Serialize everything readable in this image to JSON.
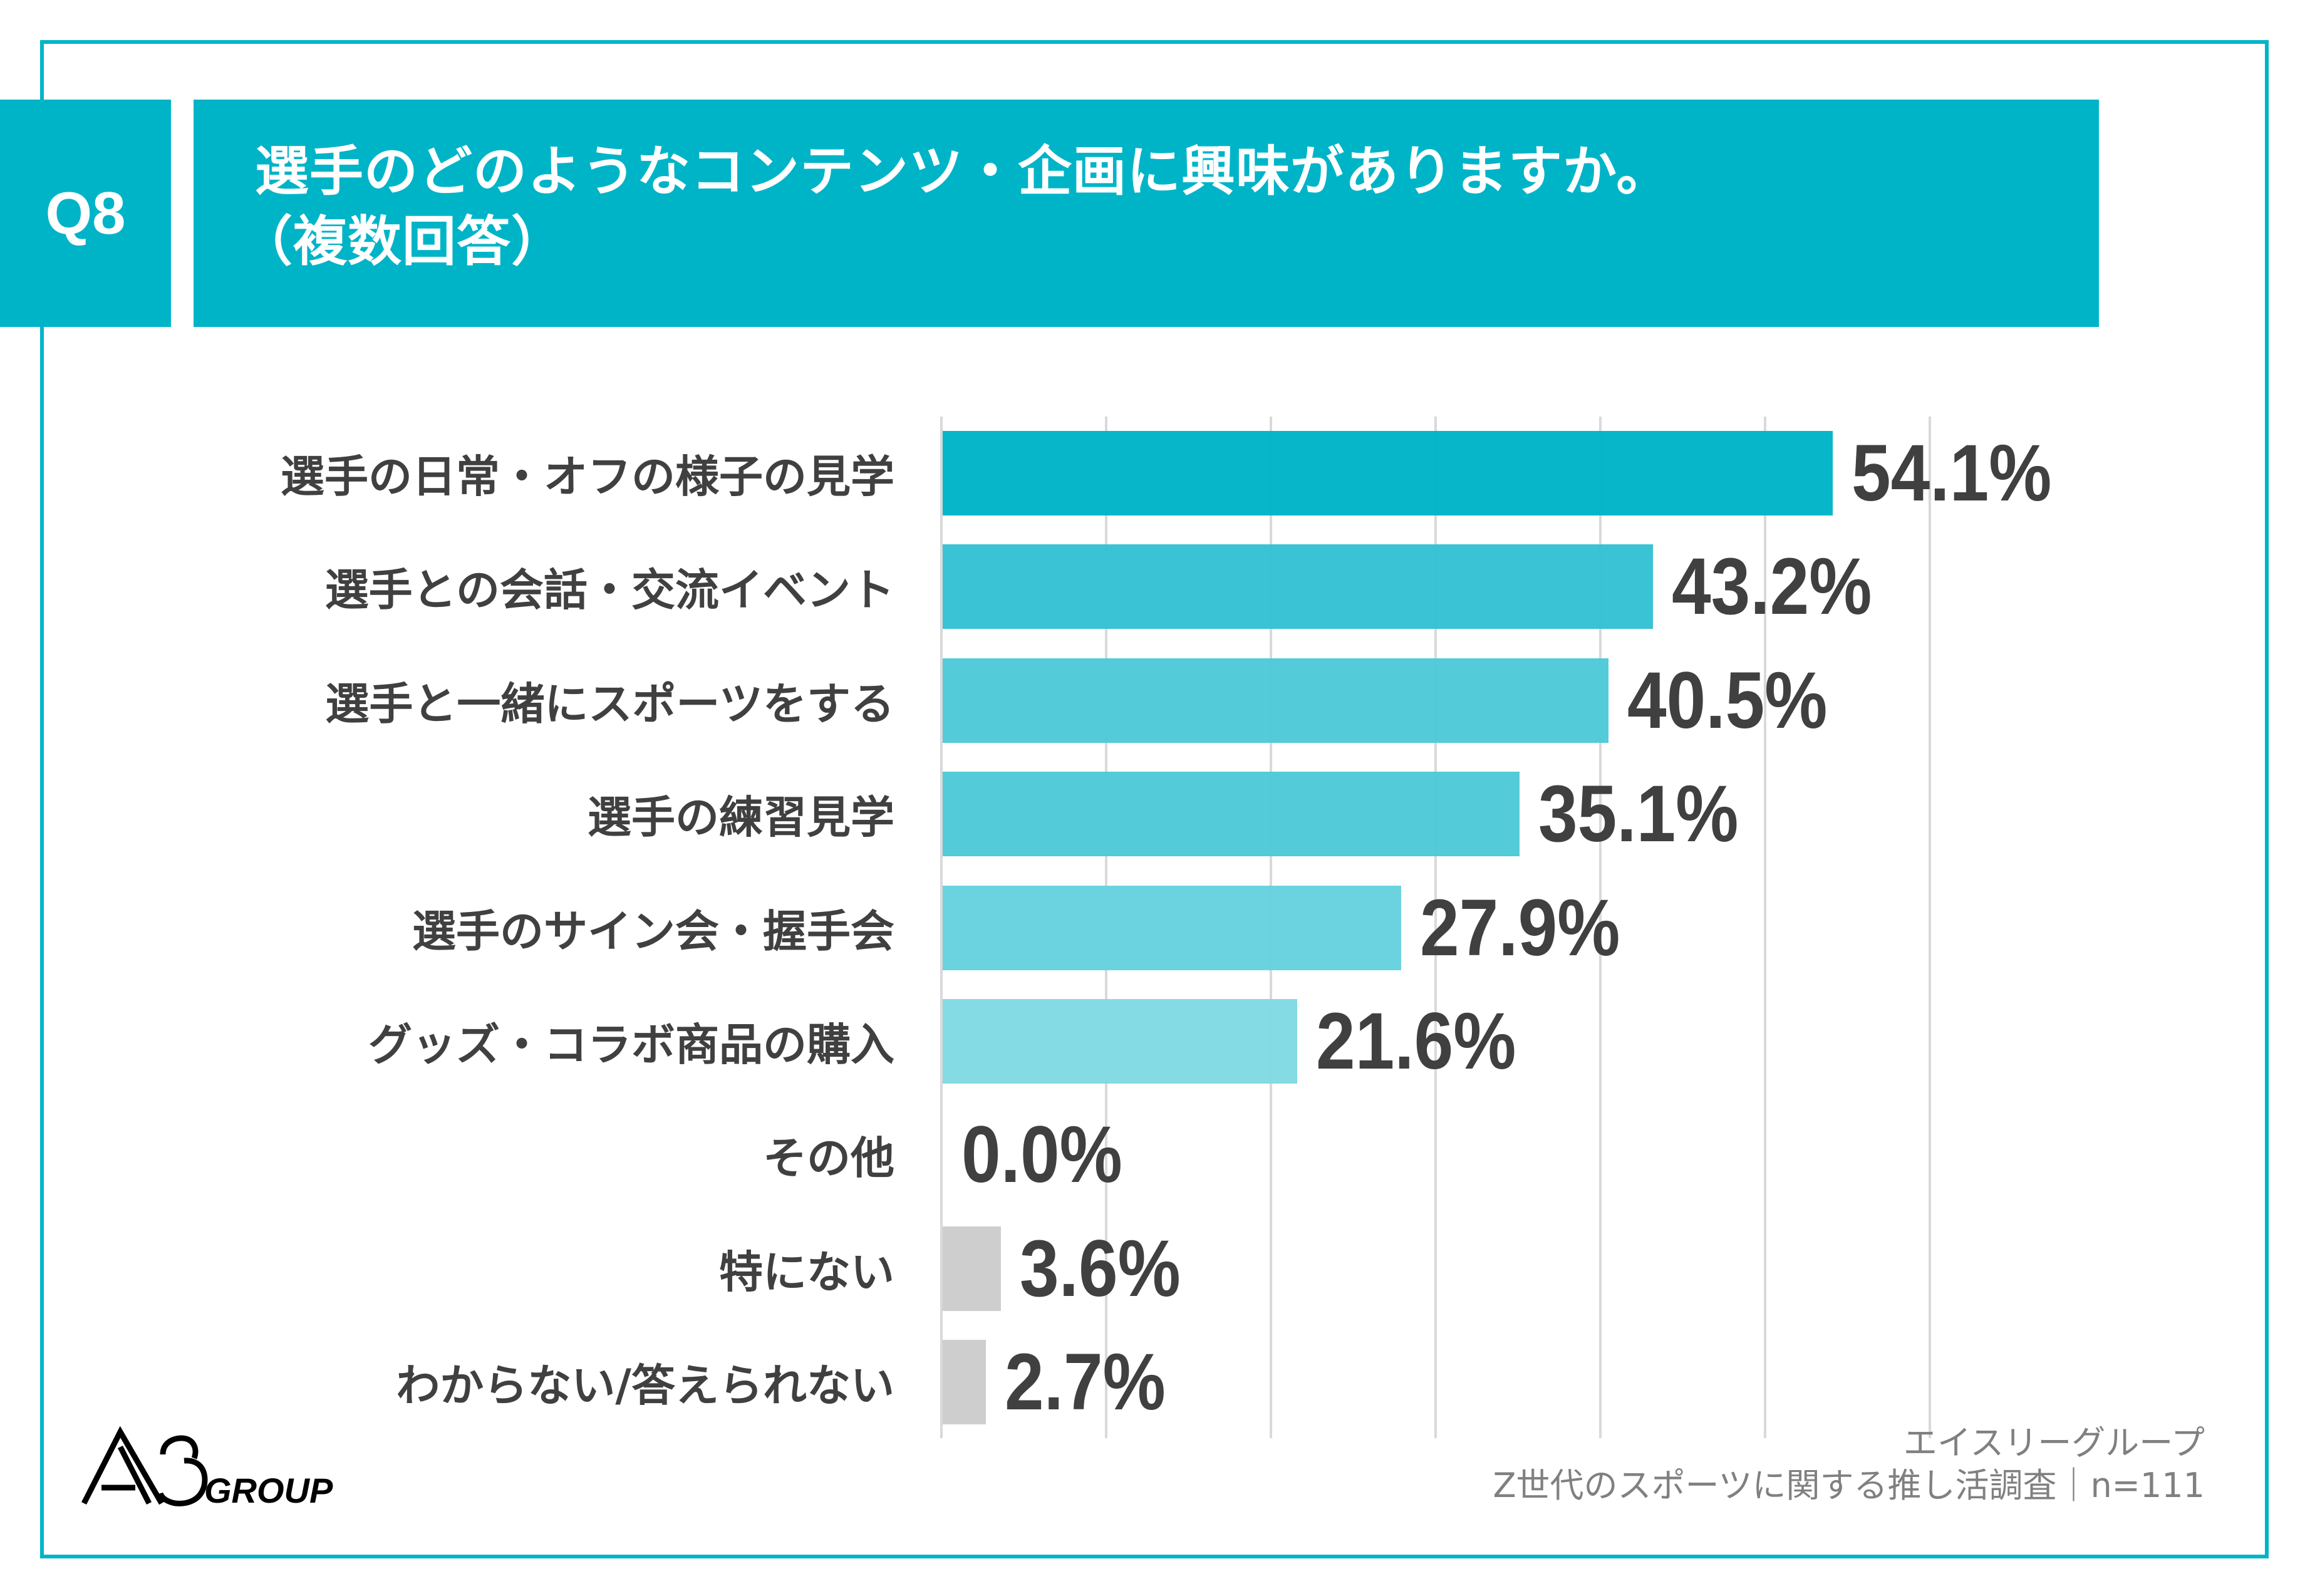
{
  "header": {
    "question_number": "Q8",
    "title_line1": "選手のどのようなコンテンツ・企画に興味がありますか。",
    "title_line2": "（複数回答）"
  },
  "colors": {
    "accent": "#00B4C8",
    "gray_bar": "#CCCCCC",
    "text": "#404040",
    "gridline": "#D9D9D9"
  },
  "chart_data": {
    "type": "bar",
    "orientation": "horizontal",
    "title": "選手のどのようなコンテンツ・企画に興味がありますか。（複数回答）",
    "categories": [
      "選手の日常・オフの様子の見学",
      "選手との会話・交流イベント",
      "選手と一緒にスポーツをする",
      "選手の練習見学",
      "選手のサイン会・握手会",
      "グッズ・コラボ商品の購入",
      "その他",
      "特にない",
      "わからない/答えられない"
    ],
    "values": [
      54.1,
      43.2,
      40.5,
      35.1,
      27.9,
      21.6,
      0.0,
      3.6,
      2.7
    ],
    "value_labels": [
      "54.1%",
      "43.2%",
      "40.5%",
      "35.1%",
      "27.9%",
      "21.6%",
      "0.0%",
      "3.6%",
      "2.7%"
    ],
    "bar_colors": [
      "#00B4C8",
      "#33C1D3",
      "#4DC9D8",
      "#4DC9D8",
      "#66D2DE",
      "#80DAE3",
      "#80DAE3",
      "#CCCCCC",
      "#CCCCCC"
    ],
    "unit": "%",
    "xlim": [
      0,
      60
    ],
    "grid_step": 10,
    "grid": true,
    "xlabel": "",
    "ylabel": ""
  },
  "footer": {
    "company": "エイスリーグループ",
    "survey": "Z世代のスポーツに関する推し活調査｜n=111"
  },
  "logo": {
    "text": "A3GROUP"
  }
}
